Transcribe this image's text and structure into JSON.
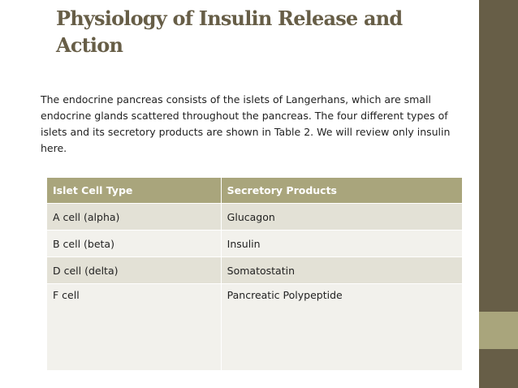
{
  "header": {
    "title_lines": [
      "Physiology of Insulin Release and",
      "Action"
    ]
  },
  "body": {
    "lines": [
      "The endocrine pancreas consists of the islets of Langerhans, which are small",
      "endocrine glands scattered throughout the pancreas. The four different types of",
      "islets and its secretory products are shown in Table 2. We will review only insulin",
      "here."
    ]
  },
  "table": {
    "columns": [
      "Islet Cell Type",
      "Secretory Products"
    ],
    "rows": [
      [
        "A cell (alpha)",
        "Glucagon"
      ],
      [
        "B cell (beta)",
        "Insulin"
      ],
      [
        "D cell (delta)",
        "Somatostatin"
      ],
      [
        "F cell",
        "Pancreatic Polypeptide"
      ]
    ]
  }
}
